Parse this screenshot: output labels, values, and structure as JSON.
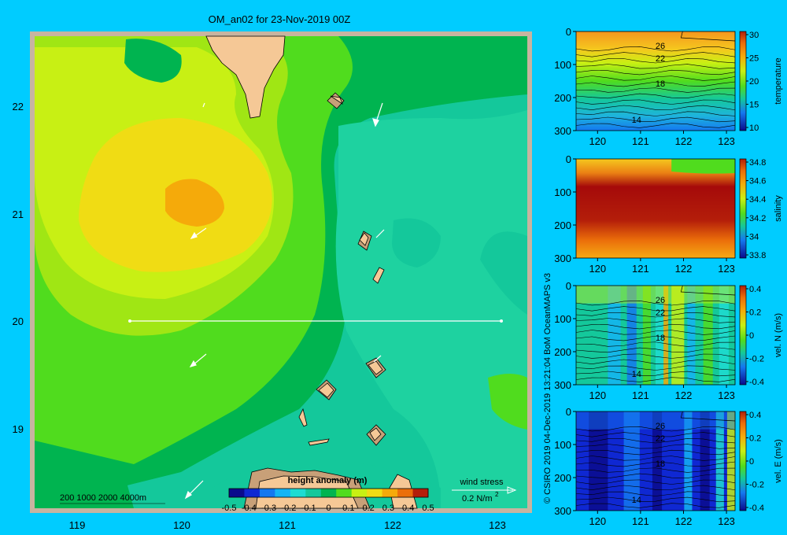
{
  "colors": {
    "background": "#00ccff",
    "frame": "#c8b4a0",
    "land": "#f5c896",
    "shelf": "#c8a078",
    "contours": "#000000",
    "vectors": "#ffffff"
  },
  "main_map": {
    "title": "OM_an02 for 23-Nov-2019 00Z",
    "x_ticks": [
      "119",
      "120",
      "121",
      "122",
      "123"
    ],
    "y_ticks": [
      "22",
      "21",
      "20",
      "19"
    ],
    "depth_legend": "200  1000  2000  4000m",
    "colorbar": {
      "title": "height anomaly (m)",
      "ticks": [
        "-0.5",
        "-0.4",
        "-0.3",
        "-0.2",
        "-0.1",
        "0",
        "0.1",
        "0.2",
        "0.3",
        "0.4",
        "0.5"
      ],
      "colors": [
        "#0a0a8c",
        "#0f28d2",
        "#1478f0",
        "#14b4f5",
        "#1edcd2",
        "#14c89b",
        "#00b450",
        "#50dc1e",
        "#c8f014",
        "#f0dc14",
        "#f5aa0a",
        "#eb6e0a",
        "#b41e0a"
      ]
    },
    "wind_stress_label": "wind stress",
    "wind_stress_unit": "0.2 N/m",
    "wind_stress_exp": "2"
  },
  "side_label": "© CSIRO 2019   04-Dec-2019 13:21:04 BoM OceanMAPS v3",
  "sections": [
    {
      "colorbar_label": "temperature",
      "colorbar_ticks": [
        "30",
        "25",
        "20",
        "15",
        "10"
      ],
      "contour_labels": [
        "26",
        "22",
        "18",
        "14"
      ]
    },
    {
      "colorbar_label": "salinity",
      "colorbar_ticks": [
        "34.8",
        "34.6",
        "34.4",
        "34.2",
        "34",
        "33.8"
      ],
      "contour_labels": []
    },
    {
      "colorbar_label": "vel. N (m/s)",
      "colorbar_ticks": [
        "0.4",
        "0.2",
        "0",
        "-0.2",
        "-0.4"
      ],
      "contour_labels": [
        "26",
        "22",
        "18",
        "14"
      ]
    },
    {
      "colorbar_label": "vel. E (m/s)",
      "colorbar_ticks": [
        "0.4",
        "0.2",
        "0",
        "-0.2",
        "-0.4"
      ],
      "contour_labels": [
        "26",
        "22",
        "18",
        "14"
      ]
    }
  ],
  "section_x_ticks": [
    "120",
    "121",
    "122",
    "123"
  ],
  "section_y_ticks": [
    "0",
    "100",
    "200",
    "300"
  ],
  "chart_data": {
    "type": "heatmap",
    "title": "OM_an02 for 23-Nov-2019 00Z",
    "xlabel": "",
    "ylabel": "",
    "xlim": [
      118.5,
      123.5
    ],
    "ylim": [
      18.3,
      22.7
    ],
    "colorbar_title": "height anomaly (m)",
    "colorbar_range": [
      -0.5,
      0.5
    ],
    "section_line": {
      "lat": 20.0,
      "lon": [
        119.5,
        123.2
      ]
    },
    "height_anomaly_features": [
      {
        "lon": 120.1,
        "lat": 21.1,
        "value": 0.2
      },
      {
        "lon": 120.0,
        "lat": 20.9,
        "value": 0.15
      },
      {
        "lon": 122.6,
        "lat": 20.5,
        "value": -0.05
      },
      {
        "lon": 121.9,
        "lat": 18.5,
        "value": -0.05
      }
    ],
    "sections": [
      {
        "variable": "temperature",
        "range": [
          10,
          30
        ],
        "depth": [
          0,
          300
        ],
        "lon": [
          119.5,
          123.2
        ]
      },
      {
        "variable": "salinity",
        "range": [
          33.7,
          34.9
        ],
        "depth": [
          0,
          300
        ],
        "lon": [
          119.5,
          123.2
        ]
      },
      {
        "variable": "vel. N (m/s)",
        "range": [
          -0.4,
          0.4
        ],
        "depth": [
          0,
          300
        ],
        "lon": [
          119.5,
          123.2
        ]
      },
      {
        "variable": "vel. E (m/s)",
        "range": [
          -0.4,
          0.4
        ],
        "depth": [
          0,
          300
        ],
        "lon": [
          119.5,
          123.2
        ]
      }
    ]
  }
}
